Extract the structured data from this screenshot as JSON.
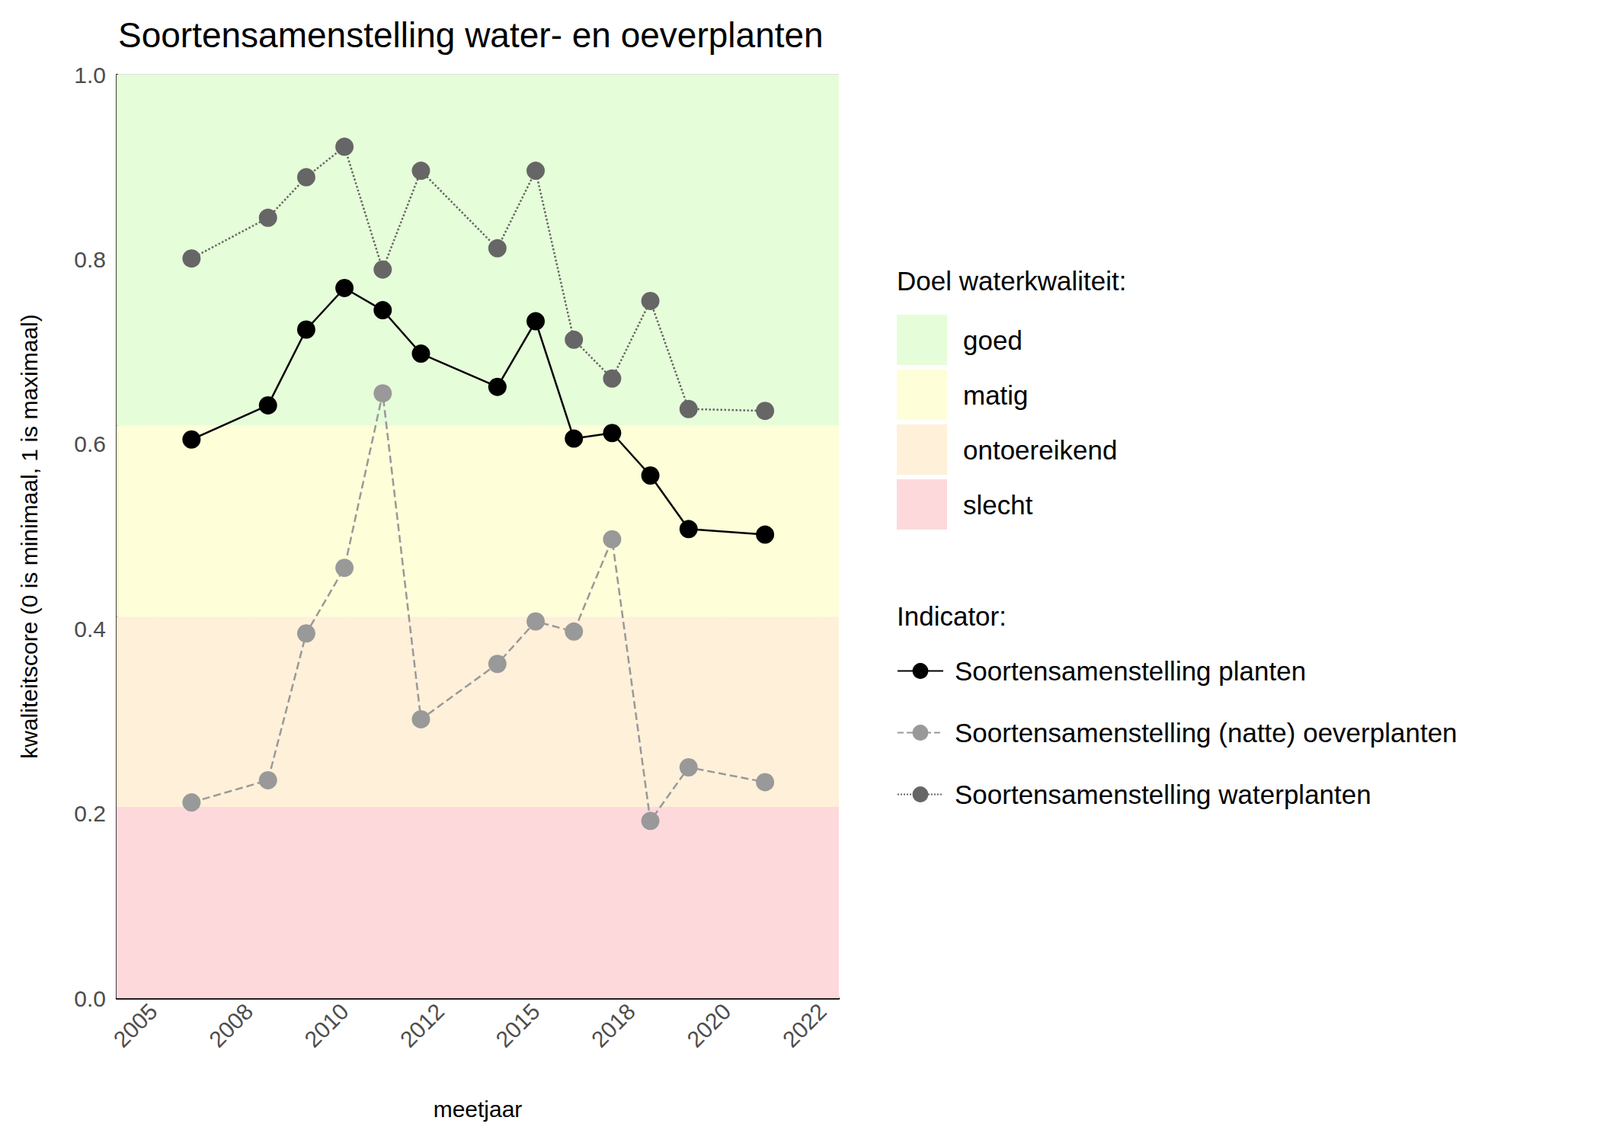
{
  "chart_data": {
    "type": "line",
    "title": "Soortensamenstelling water- en oeverplanten",
    "x_label": "meetjaar",
    "y_label": "kwaliteitscore (0 is minimaal, 1 is maximaal)",
    "x": [
      2006,
      2008,
      2009,
      2010,
      2011,
      2012,
      2014,
      2015,
      2016,
      2017,
      2018,
      2019,
      2021
    ],
    "series": [
      {
        "name": "Soortensamenstelling planten",
        "color": "#000000",
        "line_style": "solid",
        "marker": "circle",
        "values": [
          0.605,
          0.642,
          0.724,
          0.769,
          0.745,
          0.698,
          0.662,
          0.733,
          0.606,
          0.612,
          0.566,
          0.508,
          0.502
        ]
      },
      {
        "name": "Soortensamenstelling (natte) oeverplanten",
        "color": "#999999",
        "line_style": "dashed",
        "marker": "circle",
        "values": [
          0.212,
          0.236,
          0.395,
          0.466,
          0.655,
          0.302,
          0.362,
          0.408,
          0.397,
          0.497,
          0.192,
          0.25,
          0.234
        ]
      },
      {
        "name": "Soortensamenstelling waterplanten",
        "color": "#666666",
        "line_style": "dotted",
        "marker": "circle",
        "values": [
          0.801,
          0.845,
          0.889,
          0.922,
          0.789,
          0.896,
          0.812,
          0.896,
          0.713,
          0.671,
          0.755,
          0.638,
          0.636
        ]
      }
    ],
    "xlim": [
      2004.04,
      2022.93
    ],
    "xticks": [
      2005,
      {
        "value": 2007.5,
        "label": "2008"
      },
      2010,
      {
        "value": 2012.5,
        "label": "2012"
      },
      2015,
      {
        "value": 2017.5,
        "label": "2018"
      },
      2020,
      {
        "value": 2022.5,
        "label": "2022"
      }
    ],
    "ylim": [
      0,
      1
    ],
    "yticks": [
      {
        "value": 0,
        "label": "0.0"
      },
      0.2,
      0.4,
      0.6,
      0.8,
      {
        "value": 1,
        "label": "1.0"
      }
    ],
    "grid": true,
    "legend": "right",
    "legend_title": "Indicator:",
    "band_legend_title": "Doel waterkwaliteit:",
    "bands": [
      {
        "name": "goed",
        "from": 0.62,
        "to": 1,
        "color": "#e6fdd9"
      },
      {
        "name": "matig",
        "from": 0.413,
        "to": 0.62,
        "color": "#fefed9"
      },
      {
        "name": "ontoereikend",
        "from": 0.207,
        "to": 0.413,
        "color": "#fef0d9"
      },
      {
        "name": "slecht",
        "from": 0,
        "to": 0.207,
        "color": "#fdd9dc"
      }
    ]
  }
}
